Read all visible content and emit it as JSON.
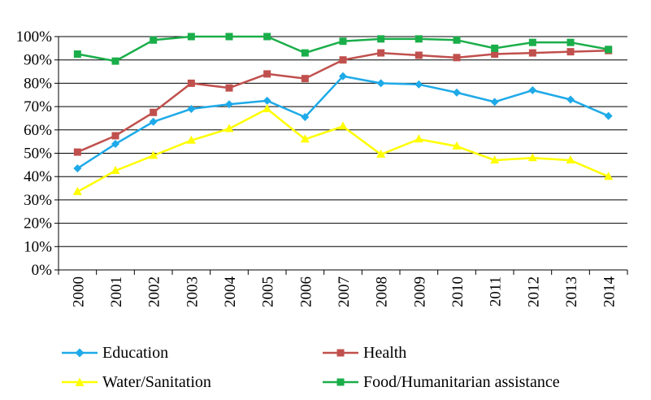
{
  "chart_data": {
    "type": "line",
    "categories": [
      "2000",
      "2001",
      "2002",
      "2003",
      "2004",
      "2005",
      "2006",
      "2007",
      "2008",
      "2009",
      "2010",
      "2011",
      "2012",
      "2013",
      "2014"
    ],
    "ylim": [
      0,
      100
    ],
    "yticks": [
      "0%",
      "10%",
      "20%",
      "30%",
      "40%",
      "50%",
      "60%",
      "70%",
      "80%",
      "90%",
      "100%"
    ],
    "grid": true,
    "legend_position": "bottom",
    "series": [
      {
        "name": "Education",
        "color": "#1eaae8",
        "marker": "diamond",
        "values": [
          43.5,
          54,
          63.5,
          69,
          71,
          72.5,
          65.5,
          83,
          80,
          79.5,
          76,
          72,
          77,
          73,
          66
        ]
      },
      {
        "name": "Health",
        "color": "#c0504d",
        "marker": "square",
        "values": [
          50.5,
          57.5,
          67.5,
          80,
          78,
          84,
          82,
          90,
          93,
          92,
          91,
          92.5,
          93,
          93.5,
          94
        ]
      },
      {
        "name": "Water/Sanitation",
        "color": "#ffff00",
        "marker": "triangle",
        "values": [
          33.5,
          42.5,
          49,
          55.5,
          60.5,
          69,
          56,
          61.5,
          49.5,
          56,
          53,
          47,
          48,
          47,
          40
        ]
      },
      {
        "name": "Food/Humanitarian assistance",
        "color": "#1aae4a",
        "marker": "square",
        "values": [
          92.5,
          89.5,
          98.5,
          100,
          100,
          100,
          93,
          98,
          99,
          99,
          98.5,
          95,
          97.5,
          97.5,
          94.5
        ]
      }
    ]
  }
}
